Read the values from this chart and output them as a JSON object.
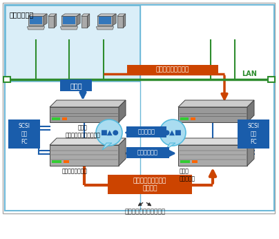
{
  "bg_color": "#ffffff",
  "outer_bg": "#dff0f8",
  "client_bg": "#dff0f8",
  "right_bg": "#dff0f8",
  "border_color": "#6cb8d8",
  "border_outer": "#aaaaaa",
  "green": "#2d8c2d",
  "blue": "#1a5dab",
  "orange": "#cc4400",
  "lblue_bubble": "#aadcf0",
  "lblue_bubble_border": "#55bbdd",
  "label_client": "クライアント",
  "label_normal": "通常時",
  "label_failure": "本番系に障害発生時",
  "label_switchover": "本番系に障害発生時\n切り替え",
  "label_same_data": "同一データ",
  "label_data_copy": "データコピー",
  "label_primary_server": "本番系\nアプリケーションサーバ",
  "label_primary_storage": "本番系ストレージ",
  "label_backup_storage": "予備系\nストレージ",
  "label_scsi": "SCSI\n又は\nFC",
  "label_lan": "LAN",
  "label_note": "場合によっては舉拠点間"
}
